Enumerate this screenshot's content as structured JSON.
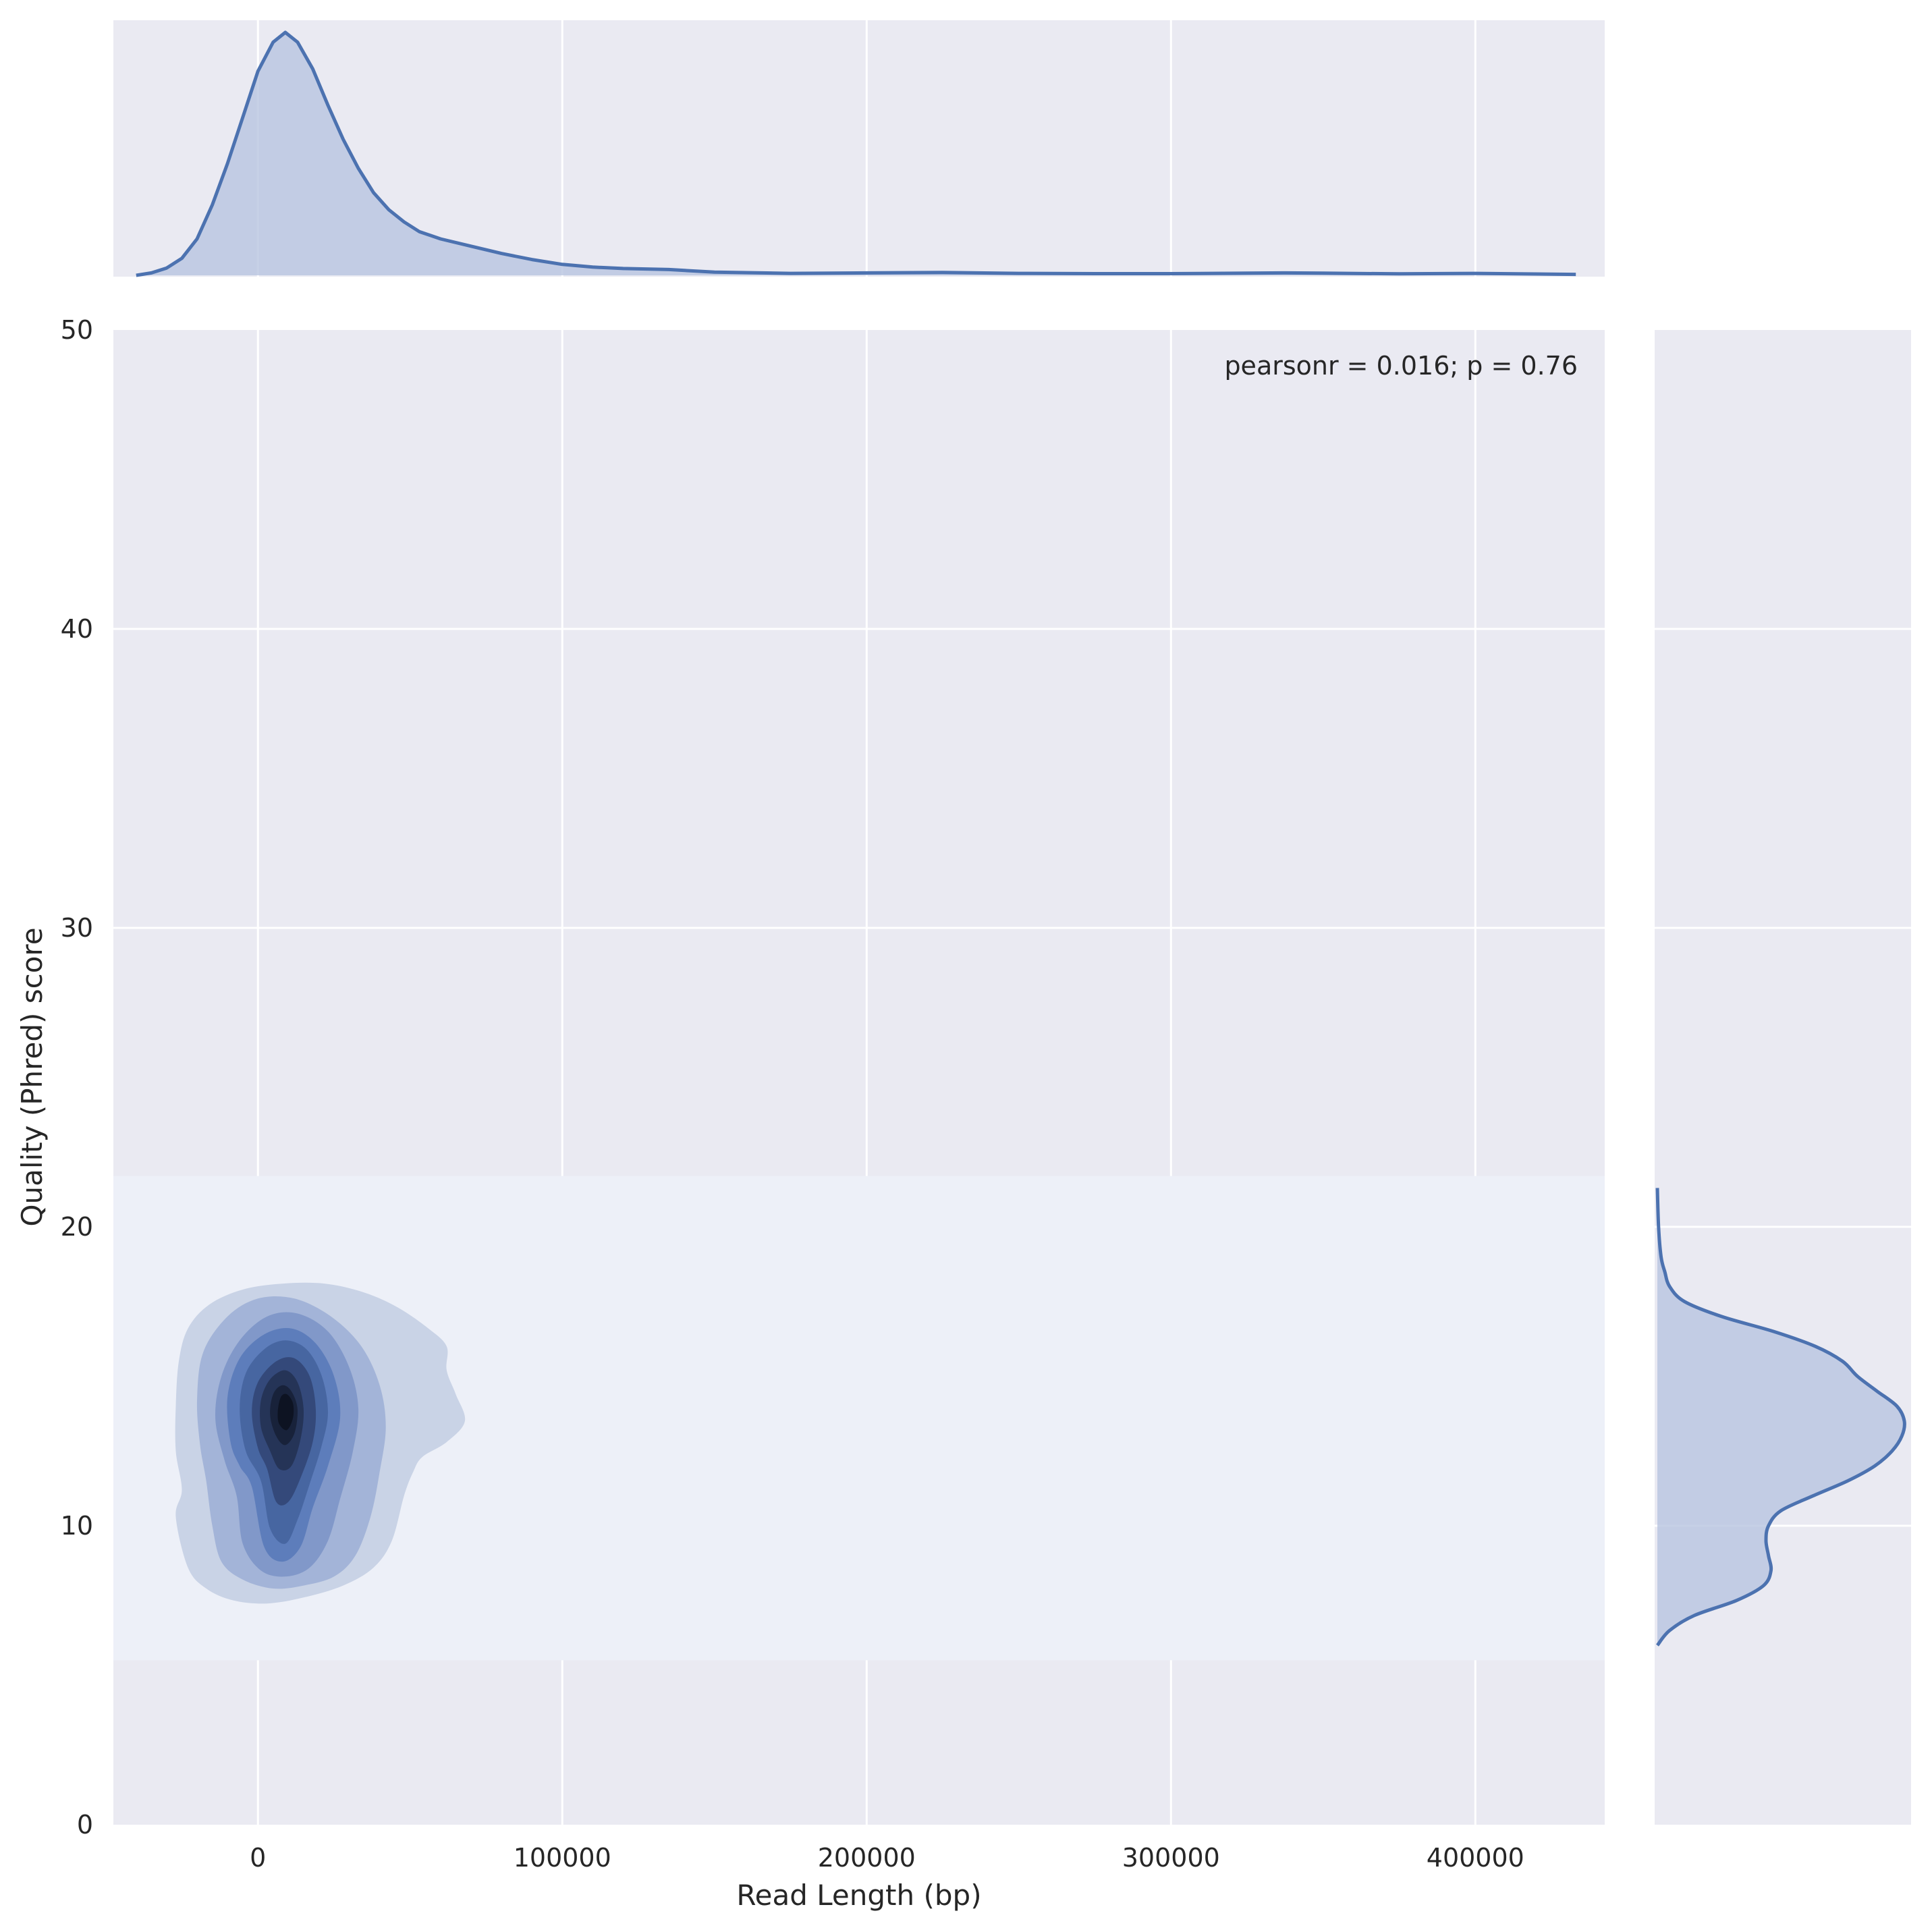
{
  "chart_data": {
    "type": "kde-joint",
    "x_label": "Read Length (bp)",
    "y_label": "Quality (Phred) score",
    "annotation": "pearsonr = 0.016; p = 0.76",
    "xlim": [
      -47500,
      442500
    ],
    "ylim": [
      0,
      50
    ],
    "x_ticks": [
      0,
      100000,
      200000,
      300000,
      400000
    ],
    "x_tick_labels": [
      "0",
      "100000",
      "200000",
      "300000",
      "400000"
    ],
    "y_ticks": [
      0,
      10,
      20,
      30,
      40,
      50
    ],
    "y_tick_labels": [
      "0",
      "10",
      "20",
      "30",
      "40",
      "50"
    ],
    "grid": true,
    "style": "seaborn darkgrid",
    "colors": {
      "line": "#4c72b0",
      "fill": "#b8c4e0",
      "background": "#eaeaf2",
      "contour_plateau": "#edf0f8",
      "grid": "#ffffff"
    },
    "joint_kde": {
      "peak": {
        "x": 9000,
        "y": 13.8
      },
      "plateau_y_range": [
        5.5,
        21.7
      ],
      "level_colors": [
        "#c9d3e6",
        "#a3b4d8",
        "#8198c9",
        "#5d7dbb",
        "#4766a1",
        "#34497a",
        "#253457",
        "#18223a",
        "#0d1322"
      ],
      "levels": [
        [
          [
            -27000,
            10.3
          ],
          [
            -23000,
            8.6
          ],
          [
            -17000,
            7.9
          ],
          [
            -8000,
            7.5
          ],
          [
            3000,
            7.4
          ],
          [
            15000,
            7.6
          ],
          [
            28000,
            8.0
          ],
          [
            38000,
            8.6
          ],
          [
            44000,
            9.5
          ],
          [
            48000,
            11.0
          ],
          [
            51000,
            11.8
          ],
          [
            54000,
            12.3
          ],
          [
            62000,
            12.8
          ],
          [
            68000,
            13.5
          ],
          [
            65000,
            14.4
          ],
          [
            62000,
            15.2
          ],
          [
            62000,
            16.0
          ],
          [
            56000,
            16.6
          ],
          [
            46000,
            17.3
          ],
          [
            35000,
            17.8
          ],
          [
            22000,
            18.1
          ],
          [
            8000,
            18.1
          ],
          [
            -5000,
            17.9
          ],
          [
            -16000,
            17.4
          ],
          [
            -23000,
            16.6
          ],
          [
            -26000,
            15.5
          ],
          [
            -27000,
            14.0
          ],
          [
            -27000,
            12.5
          ],
          [
            -25000,
            11.2
          ]
        ],
        [
          [
            -15000,
            10.0
          ],
          [
            -12000,
            8.8
          ],
          [
            -5000,
            8.2
          ],
          [
            5000,
            7.9
          ],
          [
            15000,
            8.0
          ],
          [
            25000,
            8.3
          ],
          [
            32000,
            9.0
          ],
          [
            37000,
            10.3
          ],
          [
            40000,
            11.8
          ],
          [
            42000,
            13.3
          ],
          [
            40000,
            14.7
          ],
          [
            34000,
            16.0
          ],
          [
            24000,
            17.0
          ],
          [
            12000,
            17.6
          ],
          [
            0,
            17.6
          ],
          [
            -10000,
            17.0
          ],
          [
            -18000,
            15.8
          ],
          [
            -20000,
            14.2
          ],
          [
            -19000,
            12.7
          ],
          [
            -17000,
            11.5
          ]
        ],
        [
          [
            -7000,
            11.0
          ],
          [
            -5000,
            9.4
          ],
          [
            1000,
            8.5
          ],
          [
            9000,
            8.3
          ],
          [
            17000,
            8.6
          ],
          [
            23000,
            9.5
          ],
          [
            27000,
            10.9
          ],
          [
            31000,
            12.4
          ],
          [
            33000,
            13.9
          ],
          [
            30000,
            15.3
          ],
          [
            23000,
            16.5
          ],
          [
            13000,
            17.1
          ],
          [
            3000,
            17.0
          ],
          [
            -6000,
            16.2
          ],
          [
            -12000,
            15.0
          ],
          [
            -14000,
            13.6
          ],
          [
            -11000,
            12.2
          ]
        ],
        [
          [
            -2000,
            11.3
          ],
          [
            2000,
            9.3
          ],
          [
            8000,
            8.8
          ],
          [
            14000,
            9.3
          ],
          [
            18000,
            10.6
          ],
          [
            23000,
            12.0
          ],
          [
            27000,
            13.6
          ],
          [
            25000,
            15.0
          ],
          [
            19000,
            16.1
          ],
          [
            11000,
            16.6
          ],
          [
            2000,
            16.4
          ],
          [
            -6000,
            15.6
          ],
          [
            -10000,
            14.3
          ],
          [
            -9000,
            12.8
          ],
          [
            -6000,
            12.0
          ]
        ],
        [
          [
            1000,
            11.5
          ],
          [
            4000,
            9.9
          ],
          [
            9000,
            9.4
          ],
          [
            13000,
            10.2
          ],
          [
            17000,
            11.4
          ],
          [
            21000,
            12.7
          ],
          [
            23000,
            13.8
          ],
          [
            21000,
            15.0
          ],
          [
            16000,
            15.9
          ],
          [
            9000,
            16.2
          ],
          [
            2000,
            15.9
          ],
          [
            -4000,
            15.1
          ],
          [
            -6000,
            13.9
          ],
          [
            -4000,
            12.5
          ]
        ],
        [
          [
            3000,
            11.9
          ],
          [
            6000,
            10.8
          ],
          [
            10000,
            10.8
          ],
          [
            14000,
            11.6
          ],
          [
            18000,
            12.8
          ],
          [
            19000,
            13.9
          ],
          [
            17000,
            15.0
          ],
          [
            12000,
            15.6
          ],
          [
            6000,
            15.5
          ],
          [
            0,
            14.8
          ],
          [
            -2000,
            13.8
          ],
          [
            0,
            12.6
          ]
        ],
        [
          [
            4000,
            12.5
          ],
          [
            7000,
            11.9
          ],
          [
            11000,
            12.0
          ],
          [
            14000,
            12.9
          ],
          [
            15000,
            13.9
          ],
          [
            13000,
            14.8
          ],
          [
            9000,
            15.2
          ],
          [
            4000,
            14.9
          ],
          [
            1000,
            14.2
          ],
          [
            1000,
            13.3
          ]
        ],
        [
          [
            6000,
            13.0
          ],
          [
            9000,
            12.7
          ],
          [
            12000,
            13.1
          ],
          [
            13000,
            13.9
          ],
          [
            11000,
            14.5
          ],
          [
            8000,
            14.7
          ],
          [
            5000,
            14.4
          ],
          [
            4000,
            13.7
          ]
        ],
        [
          [
            7000,
            13.4
          ],
          [
            9500,
            13.2
          ],
          [
            11500,
            13.6
          ],
          [
            11500,
            14.1
          ],
          [
            9500,
            14.4
          ],
          [
            7500,
            14.3
          ],
          [
            6500,
            13.8
          ]
        ]
      ]
    },
    "marginal_x": {
      "x": [
        -40000,
        -35000,
        -30000,
        -25000,
        -20000,
        -15000,
        -10000,
        -5000,
        0,
        5000,
        9000,
        13000,
        18000,
        23000,
        28000,
        33000,
        38000,
        43000,
        48000,
        53000,
        60000,
        70000,
        80000,
        90000,
        100000,
        110000,
        120000,
        135000,
        150000,
        175000,
        200000,
        225000,
        250000,
        275000,
        300000,
        325000,
        337000,
        350000,
        375000,
        400000,
        433000
      ],
      "density": [
        0.0,
        0.01,
        0.03,
        0.07,
        0.15,
        0.29,
        0.46,
        0.65,
        0.84,
        0.96,
        1.0,
        0.96,
        0.85,
        0.7,
        0.56,
        0.44,
        0.34,
        0.27,
        0.22,
        0.18,
        0.15,
        0.12,
        0.09,
        0.065,
        0.045,
        0.034,
        0.028,
        0.024,
        0.013,
        0.008,
        0.01,
        0.012,
        0.008,
        0.007,
        0.007,
        0.009,
        0.01,
        0.009,
        0.006,
        0.008,
        0.004
      ]
    },
    "marginal_y": {
      "y": [
        6.0,
        6.5,
        7.0,
        7.5,
        8.0,
        8.5,
        9.0,
        9.5,
        10.0,
        10.5,
        11.0,
        11.5,
        12.0,
        12.5,
        13.0,
        13.5,
        14.0,
        14.5,
        15.0,
        15.5,
        16.0,
        16.5,
        17.0,
        17.5,
        18.0,
        18.5,
        19.0,
        20.0,
        21.3
      ],
      "density": [
        0.0,
        0.05,
        0.15,
        0.32,
        0.43,
        0.46,
        0.45,
        0.44,
        0.45,
        0.5,
        0.63,
        0.77,
        0.88,
        0.95,
        0.99,
        1.0,
        0.97,
        0.89,
        0.81,
        0.75,
        0.64,
        0.47,
        0.26,
        0.11,
        0.05,
        0.03,
        0.015,
        0.005,
        0.0
      ]
    }
  }
}
